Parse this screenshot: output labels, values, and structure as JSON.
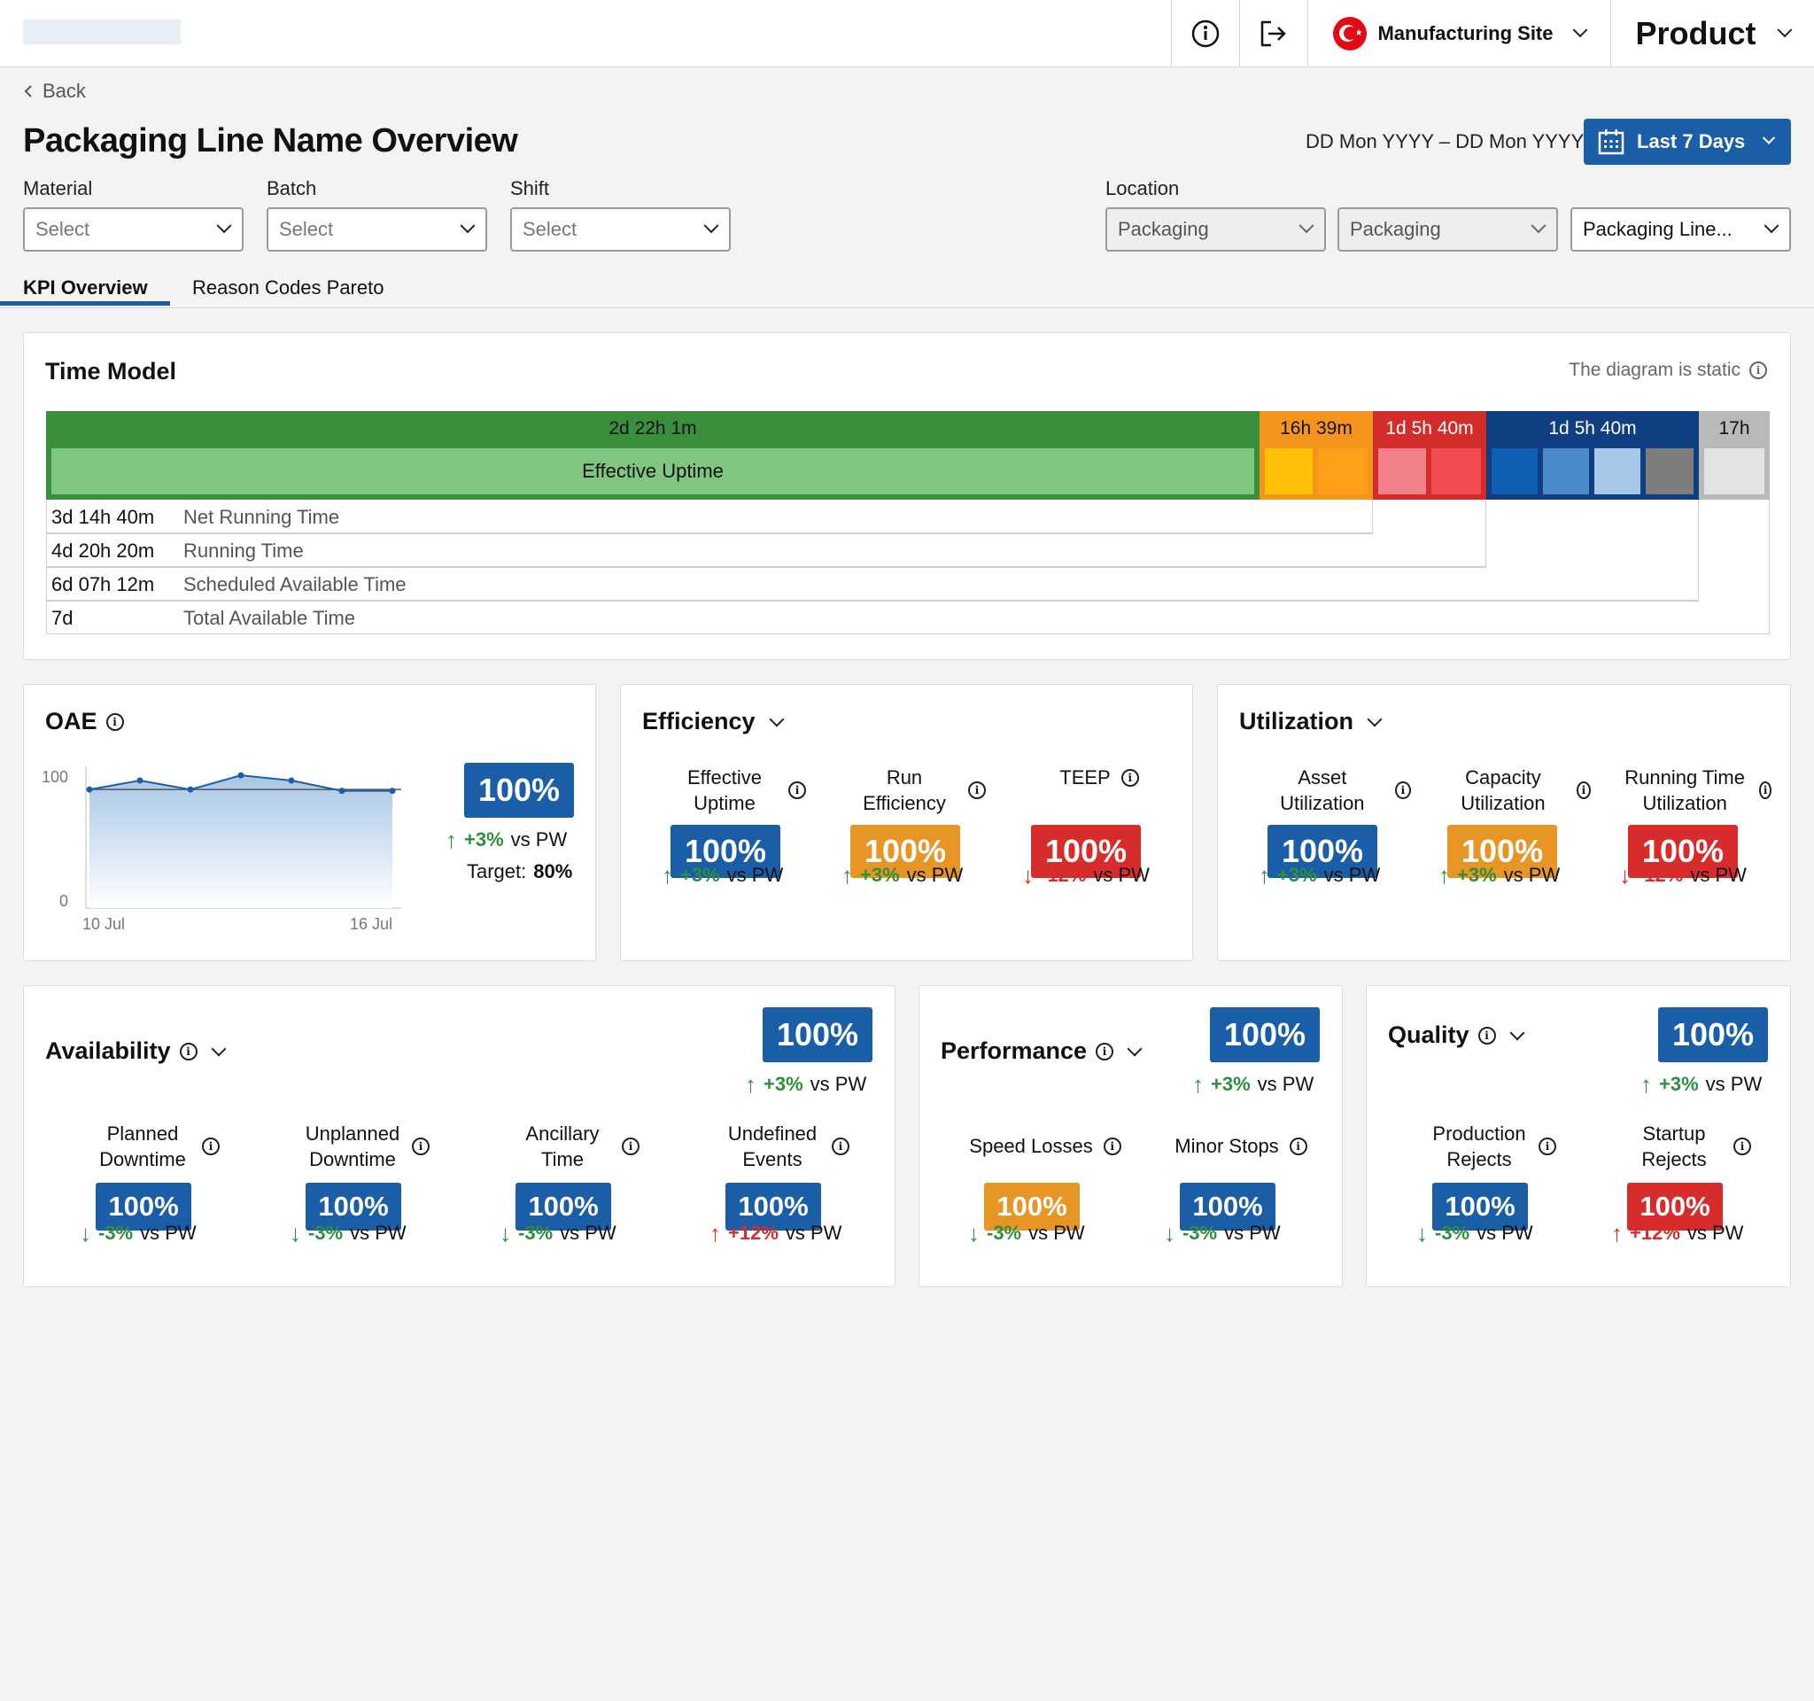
{
  "header": {
    "site_name": "Manufacturing Site",
    "product_label": "Product",
    "icons": [
      "info-icon",
      "logout-icon",
      "flag-icon",
      "chevron-down-icon"
    ]
  },
  "page": {
    "back_label": "Back",
    "title": "Packaging Line Name Overview",
    "date_range": "DD Mon YYYY – DD Mon YYYY",
    "period_label": "Last 7 Days"
  },
  "filters": {
    "material": {
      "label": "Material",
      "value": "Select"
    },
    "batch": {
      "label": "Batch",
      "value": "Select"
    },
    "shift": {
      "label": "Shift",
      "value": "Select"
    },
    "location": {
      "label": "Location",
      "values": [
        "Packaging",
        "Packaging",
        "Packaging Line..."
      ]
    }
  },
  "tabs": [
    {
      "label": "KPI Overview",
      "active": true
    },
    {
      "label": "Reason Codes Pareto",
      "active": false
    }
  ],
  "time_model": {
    "title": "Time Model",
    "static_note": "The diagram is static",
    "segments": [
      {
        "label": "2d 22h 1m",
        "inner_label": "Effective Uptime",
        "color": "#3a8f3c"
      },
      {
        "label": "16h 39m",
        "color": "#f4941c"
      },
      {
        "label": "1d 5h 40m",
        "color": "#d42b2b"
      },
      {
        "label": "1d 5h 40m",
        "color": "#0f3f80"
      },
      {
        "label": "17h",
        "color": "#b9b9b9"
      }
    ],
    "rows": [
      {
        "value": "3d 14h 40m",
        "name": "Net Running Time"
      },
      {
        "value": "4d 20h 20m",
        "name": "Running Time"
      },
      {
        "value": "6d 07h 12m",
        "name": "Scheduled Available Time"
      },
      {
        "value": "7d",
        "name": "Total Available Time"
      }
    ]
  },
  "oae": {
    "title": "OAE",
    "value": "100%",
    "delta": "+3%",
    "vs": "vs PW",
    "target_label": "Target:",
    "target_value": "80%",
    "chart_data": {
      "type": "area",
      "x": [
        "10 Jul",
        "11 Jul",
        "12 Jul",
        "13 Jul",
        "14 Jul",
        "15 Jul",
        "16 Jul"
      ],
      "values": [
        92,
        99,
        92,
        103,
        99,
        91,
        91
      ],
      "ylim": [
        0,
        100
      ],
      "y_ticks": [
        "100",
        "0"
      ],
      "x_tick_labels": [
        "10 Jul",
        "16 Jul"
      ],
      "target": 92
    }
  },
  "efficiency": {
    "title": "Efficiency",
    "metrics": [
      {
        "label": "Effective Uptime",
        "value": "100%",
        "color": "blue",
        "delta": "+3%",
        "dir": "up"
      },
      {
        "label": "Run Efficiency",
        "value": "100%",
        "color": "orange",
        "delta": "+3%",
        "dir": "up"
      },
      {
        "label": "TEEP",
        "value": "100%",
        "color": "red",
        "delta": "-12%",
        "dir": "down"
      }
    ]
  },
  "utilization": {
    "title": "Utilization",
    "metrics": [
      {
        "label": "Asset Utilization",
        "value": "100%",
        "color": "blue",
        "delta": "+3%",
        "dir": "up"
      },
      {
        "label": "Capacity Utilization",
        "value": "100%",
        "color": "orange",
        "delta": "+3%",
        "dir": "up"
      },
      {
        "label": "Running Time Utilization",
        "value": "100%",
        "color": "red",
        "delta": "-12%",
        "dir": "down"
      }
    ]
  },
  "availability": {
    "title": "Availability",
    "value": "100%",
    "delta": "+3%",
    "metrics": [
      {
        "label": "Planned Downtime",
        "value": "100%",
        "color": "blue",
        "delta": "-3%",
        "dir": "down-good"
      },
      {
        "label": "Unplanned Downtime",
        "value": "100%",
        "color": "blue",
        "delta": "-3%",
        "dir": "down-good"
      },
      {
        "label": "Ancillary Time",
        "value": "100%",
        "color": "blue",
        "delta": "-3%",
        "dir": "down-good"
      },
      {
        "label": "Undefined Events",
        "value": "100%",
        "color": "blue",
        "delta": "+12%",
        "dir": "up-bad"
      }
    ]
  },
  "performance": {
    "title": "Performance",
    "value": "100%",
    "delta": "+3%",
    "metrics": [
      {
        "label": "Speed Losses",
        "value": "100%",
        "color": "orange",
        "delta": "-3%",
        "dir": "down-good"
      },
      {
        "label": "Minor Stops",
        "value": "100%",
        "color": "blue",
        "delta": "-3%",
        "dir": "down-good"
      }
    ]
  },
  "quality": {
    "title": "Quality",
    "value": "100%",
    "delta": "+3%",
    "metrics": [
      {
        "label": "Production Rejects",
        "value": "100%",
        "color": "blue",
        "delta": "-3%",
        "dir": "down-good"
      },
      {
        "label": "Startup Rejects",
        "value": "100%",
        "color": "red",
        "delta": "+12%",
        "dir": "up-bad"
      }
    ]
  },
  "common": {
    "vs_label": "vs PW"
  }
}
